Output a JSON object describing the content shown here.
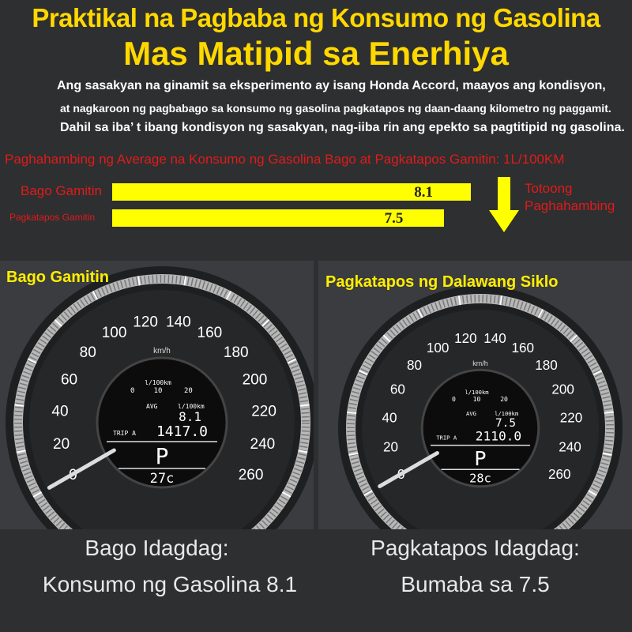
{
  "title_line1": "Praktikal na Pagbaba ng Konsumo ng Gasolina",
  "title_line2": "Mas Matipid sa Enerhiya",
  "description": [
    "Ang sasakyan na ginamit sa eksperimento ay isang Honda Accord, maayos ang kondisyon,",
    "at nagkaroon ng pagbabago sa konsumo ng gasolina pagkatapos ng daan-daang kilometro ng paggamit.",
    "Dahil sa iba’ t ibang kondisyon ng sasakyan, nag-iiba rin ang epekto sa pagtitipid ng gasolina."
  ],
  "chart_data": {
    "type": "bar",
    "orientation": "horizontal",
    "title": "Paghahambing ng Average na Konsumo ng Gasolina Bago at Pagkatapos Gamitin: 1L/100KM",
    "categories": [
      "Bago Gamitin",
      "Pagkatapos Gamitin"
    ],
    "values": [
      8.1,
      7.5
    ],
    "value_labels": [
      "8.1",
      "7.5"
    ],
    "bar_color": "#ffff00",
    "label_color": "#e01b1b"
  },
  "note": {
    "line1": "Totoong",
    "line2": "Paghahambing",
    "arrow_icon": "arrow-down-icon",
    "color": "#ffff00"
  },
  "speedo_labels": [
    "0",
    "20",
    "40",
    "60",
    "80",
    "100",
    "120",
    "140",
    "160",
    "180",
    "200",
    "220",
    "240",
    "260"
  ],
  "speedo_unit": "km/h",
  "panels": [
    {
      "title": "Bago Gamitin",
      "unit": "l/100km",
      "scale": [
        "0",
        "10",
        "20"
      ],
      "avg_label": "AVG",
      "avg_unit": "l/100km",
      "avg": "8.1",
      "trip_label": "TRIP A",
      "trip": "1417.0",
      "gear": "P",
      "temp": "27c",
      "caption1": "Bago Idagdag:",
      "caption2": "Konsumo ng Gasolina 8.1"
    },
    {
      "title": "Pagkatapos ng Dalawang Siklo",
      "unit": "l/100km",
      "scale": [
        "0",
        "10",
        "20"
      ],
      "avg_label": "AVG",
      "avg_unit": "l/100km",
      "avg": "7.5",
      "trip_label": "TRIP A",
      "trip": "2110.0",
      "gear": "P",
      "temp": "28c",
      "caption1": "Pagkatapos Idagdag:",
      "caption2": "Bumaba sa 7.5"
    }
  ]
}
